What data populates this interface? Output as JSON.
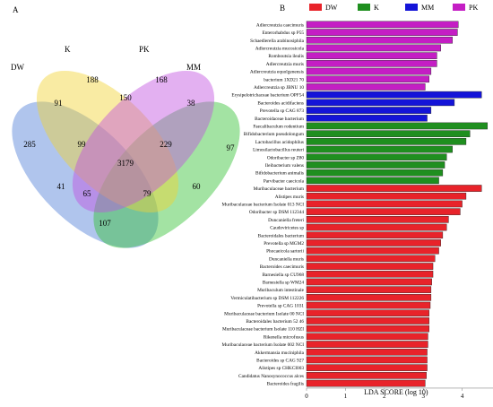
{
  "panel_a": {
    "label": "A",
    "sets": [
      {
        "name": "DW",
        "color": "#4f7fd8"
      },
      {
        "name": "K",
        "color": "#f2d232"
      },
      {
        "name": "PK",
        "color": "#c24fe0"
      },
      {
        "name": "MM",
        "color": "#33c233"
      }
    ],
    "regions": [
      {
        "label": "DW",
        "value": "285"
      },
      {
        "label": "K",
        "value": "188"
      },
      {
        "label": "PK",
        "value": "168"
      },
      {
        "label": "MM",
        "value": "97"
      },
      {
        "label": "DW∩K",
        "value": "91"
      },
      {
        "label": "K∩PK",
        "value": "150"
      },
      {
        "label": "PK∩MM",
        "value": "38"
      },
      {
        "label": "DW∩K∩PK",
        "value": "99"
      },
      {
        "label": "K∩PK∩MM",
        "value": "229"
      },
      {
        "label": "all",
        "value": "3179"
      },
      {
        "label": "DW∩PK",
        "value": "41"
      },
      {
        "label": "K∩MM",
        "value": "60"
      },
      {
        "label": "DW∩PK∩MM",
        "value": "65"
      },
      {
        "label": "DW∩K∩MM",
        "value": "79"
      },
      {
        "label": "DW∩MM",
        "value": "107"
      }
    ]
  },
  "panel_b": {
    "label": "B"
  },
  "chart_data": [
    {
      "type": "venn",
      "sets": [
        "DW",
        "K",
        "PK",
        "MM"
      ],
      "regions": {
        "DW": 285,
        "K": 188,
        "PK": 168,
        "MM": 97,
        "DW&K": 91,
        "K&PK": 150,
        "PK&MM": 38,
        "DW&PK": 41,
        "K&MM": 60,
        "DW&MM": 107,
        "DW&K&PK": 99,
        "K&PK&MM": 229,
        "DW&PK&MM": 65,
        "DW&K&MM": 79,
        "DW&K&PK&MM": 3179
      }
    },
    {
      "type": "bar",
      "orientation": "horizontal",
      "xlabel": "LDA SCORE (log 10)",
      "xlim": [
        0,
        4.8
      ],
      "xticks": [
        "0",
        "1",
        "2",
        "3",
        "4"
      ],
      "legend_position": "top",
      "groups": [
        {
          "name": "DW",
          "color": "#e8232a"
        },
        {
          "name": "K",
          "color": "#1f8f1f"
        },
        {
          "name": "MM",
          "color": "#1414d8"
        },
        {
          "name": "PK",
          "color": "#c41ec4"
        }
      ],
      "bars": [
        {
          "label": "Adlercreutzia caecimuris",
          "group": "PK",
          "value": 3.9
        },
        {
          "label": "Enterorhabdus sp P55",
          "group": "PK",
          "value": 3.88
        },
        {
          "label": "Schaedlerella arabinosiphila",
          "group": "PK",
          "value": 3.75
        },
        {
          "label": "Adlercreutzia mucosicola",
          "group": "PK",
          "value": 3.45
        },
        {
          "label": "Romboutsia ilealis",
          "group": "PK",
          "value": 3.35
        },
        {
          "label": "Adlercreutzia muris",
          "group": "PK",
          "value": 3.35
        },
        {
          "label": "Adlercreutzia equolgenensis",
          "group": "PK",
          "value": 3.2
        },
        {
          "label": "bacterium 1XD21 70",
          "group": "PK",
          "value": 3.15
        },
        {
          "label": "Adlercreutzia sp JBNU 10",
          "group": "PK",
          "value": 3.05
        },
        {
          "label": "Erysipelotrichaceae bacterium OPF54",
          "group": "MM",
          "value": 4.5
        },
        {
          "label": "Bacteroides acidifaciens",
          "group": "MM",
          "value": 3.8
        },
        {
          "label": "Prevotella sp CAG 873",
          "group": "MM",
          "value": 3.2
        },
        {
          "label": "Bacteroidaceae bacterium",
          "group": "MM",
          "value": 3.1
        },
        {
          "label": "Faecalibaculum rodentium",
          "group": "K",
          "value": 4.65
        },
        {
          "label": "Bifidobacterium pseudolongum",
          "group": "K",
          "value": 4.2
        },
        {
          "label": "Lactobacillus acidophilus",
          "group": "K",
          "value": 4.1
        },
        {
          "label": "Limosilactobacillus reuteri",
          "group": "K",
          "value": 3.75
        },
        {
          "label": "Odoribacter sp Z80",
          "group": "K",
          "value": 3.6
        },
        {
          "label": "Ileibacterium valens",
          "group": "K",
          "value": 3.55
        },
        {
          "label": "Bifidobacterium animalis",
          "group": "K",
          "value": 3.5
        },
        {
          "label": "Parvibacter caecicola",
          "group": "K",
          "value": 3.4
        },
        {
          "label": "Muribaculaceae bacterium",
          "group": "DW",
          "value": 4.5
        },
        {
          "label": "Alistipes muris",
          "group": "DW",
          "value": 4.1
        },
        {
          "label": "Muribaculaceae bacterium Isolate 013 NCI",
          "group": "DW",
          "value": 4.0
        },
        {
          "label": "Odoribacter sp DSM 112344",
          "group": "DW",
          "value": 3.95
        },
        {
          "label": "Duncaniella freteri",
          "group": "DW",
          "value": 3.65
        },
        {
          "label": "Caudoviricetes sp",
          "group": "DW",
          "value": 3.6
        },
        {
          "label": "Bacteroidales bacterium",
          "group": "DW",
          "value": 3.5
        },
        {
          "label": "Prevotella sp MGM2",
          "group": "DW",
          "value": 3.45
        },
        {
          "label": "Phocaeicola sartorii",
          "group": "DW",
          "value": 3.4
        },
        {
          "label": "Duncaniella muris",
          "group": "DW",
          "value": 3.3
        },
        {
          "label": "Bacteroides caecimuris",
          "group": "DW",
          "value": 3.25
        },
        {
          "label": "Barnesiella sp CU968",
          "group": "DW",
          "value": 3.25
        },
        {
          "label": "Barnesiella sp WM24",
          "group": "DW",
          "value": 3.22
        },
        {
          "label": "Muribaculum intestinale",
          "group": "DW",
          "value": 3.2
        },
        {
          "label": "Vermiculatibacterium sp DSM 112226",
          "group": "DW",
          "value": 3.2
        },
        {
          "label": "Prevotella sp CAG 1031",
          "group": "DW",
          "value": 3.18
        },
        {
          "label": "Muribaculaceae bacterium Isolate 00 NCI",
          "group": "DW",
          "value": 3.15
        },
        {
          "label": "Bacteroidales bacterium 52 46",
          "group": "DW",
          "value": 3.15
        },
        {
          "label": "Muribaculaceae bacterium Isolate 110 HZI",
          "group": "DW",
          "value": 3.15
        },
        {
          "label": "Rikenella microfusus",
          "group": "DW",
          "value": 3.12
        },
        {
          "label": "Muribaculaceae bacterium Isolate 002 NCI",
          "group": "DW",
          "value": 3.12
        },
        {
          "label": "Akkermansia muciniphila",
          "group": "DW",
          "value": 3.1
        },
        {
          "label": "Bacteroides sp CAG 927",
          "group": "DW",
          "value": 3.1
        },
        {
          "label": "Alistipes sp CHKCI003",
          "group": "DW",
          "value": 3.1
        },
        {
          "label": "Candidatus Nanosynococcus alces",
          "group": "DW",
          "value": 3.08
        },
        {
          "label": "Bacteroides fragilis",
          "group": "DW",
          "value": 3.05
        }
      ]
    }
  ]
}
